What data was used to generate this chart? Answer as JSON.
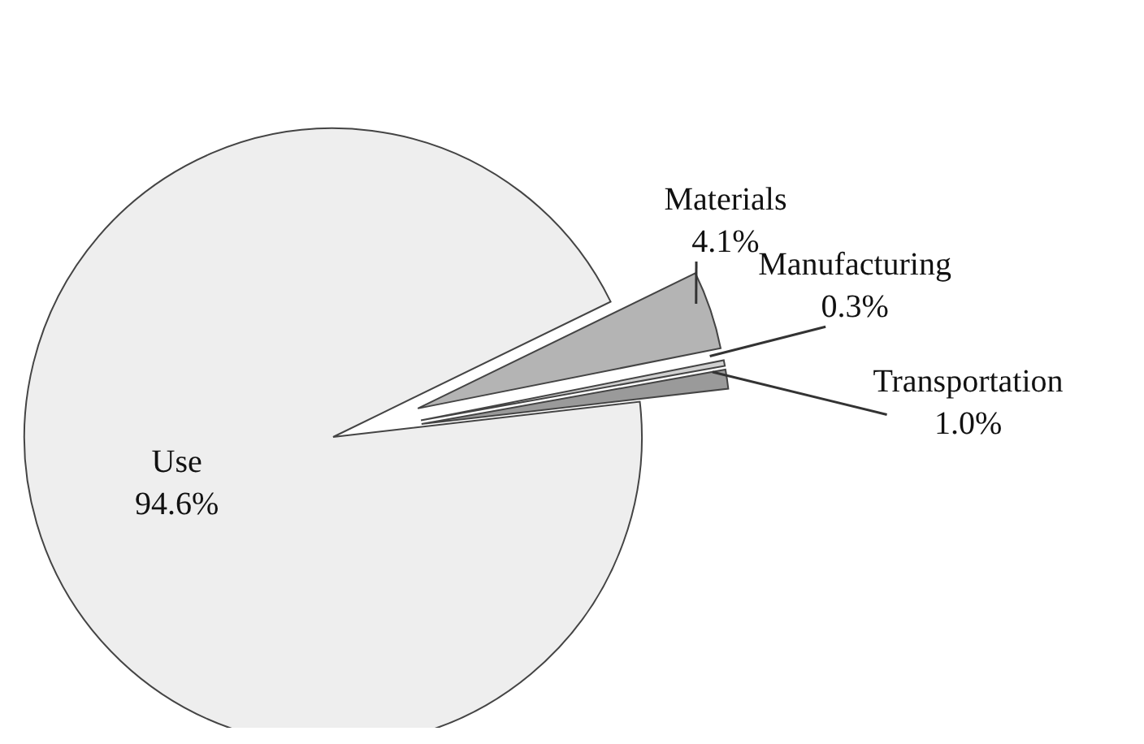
{
  "chart_data": {
    "type": "pie",
    "categories": [
      "Transportation",
      "Manufacturing",
      "Materials",
      "Use"
    ],
    "values": [
      1.0,
      0.3,
      4.1,
      94.6
    ],
    "colors": [
      "#9a9a9a",
      "#d0d0d0",
      "#b4b4b4",
      "#eeeeee"
    ],
    "value_labels": [
      "1.0%",
      "0.3%",
      "4.1%",
      "94.6%"
    ]
  }
}
